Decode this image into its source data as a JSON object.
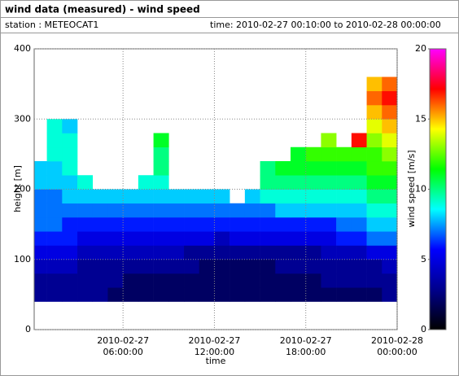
{
  "header": {
    "title": "wind data (measured) - wind speed",
    "station": "station : METEOCAT1",
    "time": "time: 2010-02-27 00:10:00 to 2010-02-28 00:00:00"
  },
  "chart_data": {
    "type": "heatmap",
    "xlabel": "time",
    "ylabel": "height [m]",
    "zlabel": "wind speed [m/s]",
    "x": [
      "2010-02-27 00:10:00",
      "2010-02-27 01:00:00",
      "2010-02-27 02:00:00",
      "2010-02-27 03:00:00",
      "2010-02-27 04:00:00",
      "2010-02-27 05:00:00",
      "2010-02-27 06:00:00",
      "2010-02-27 07:00:00",
      "2010-02-27 08:00:00",
      "2010-02-27 09:00:00",
      "2010-02-27 10:00:00",
      "2010-02-27 11:00:00",
      "2010-02-27 12:00:00",
      "2010-02-27 13:00:00",
      "2010-02-27 14:00:00",
      "2010-02-27 15:00:00",
      "2010-02-27 16:00:00",
      "2010-02-27 17:00:00",
      "2010-02-27 18:00:00",
      "2010-02-27 19:00:00",
      "2010-02-27 20:00:00",
      "2010-02-27 21:00:00",
      "2010-02-27 22:00:00",
      "2010-02-27 23:00:00"
    ],
    "xlim": [
      "2010-02-27 00:10:00",
      "2010-02-28 00:00:00"
    ],
    "xticks": [
      {
        "value": "2010-02-27 06:00:00",
        "label": [
          "2010-02-27",
          "06:00:00"
        ]
      },
      {
        "value": "2010-02-27 12:00:00",
        "label": [
          "2010-02-27",
          "12:00:00"
        ]
      },
      {
        "value": "2010-02-27 18:00:00",
        "label": [
          "2010-02-27",
          "18:00:00"
        ]
      },
      {
        "value": "2010-02-28 00:00:00",
        "label": [
          "2010-02-28",
          "00:00:00"
        ]
      }
    ],
    "ybins": [
      40,
      60,
      80,
      100,
      120,
      140,
      160,
      180,
      200,
      220,
      240,
      260,
      280,
      300,
      320,
      340,
      360
    ],
    "ylim": [
      0,
      400
    ],
    "yticks": [
      0,
      100,
      200,
      300,
      400
    ],
    "zlim": [
      0,
      20
    ],
    "zticks": [
      0,
      5,
      10,
      15,
      20
    ],
    "colormap": [
      "#000000",
      "#00008c",
      "#0000ff",
      "#00ffff",
      "#00ff00",
      "#ffff00",
      "#ff0000",
      "#ff00ff"
    ],
    "grid": true,
    "values": [
      [
        3,
        3,
        3,
        3,
        3,
        2,
        2,
        2,
        2,
        2,
        2,
        2,
        2,
        2,
        2,
        2,
        2,
        2,
        2,
        2,
        2,
        2,
        2,
        3
      ],
      [
        3,
        3,
        3,
        3,
        3,
        3,
        2,
        2,
        2,
        2,
        2,
        2,
        2,
        2,
        2,
        2,
        2,
        2,
        2,
        3,
        3,
        3,
        3,
        3
      ],
      [
        4,
        4,
        4,
        3,
        3,
        3,
        3,
        3,
        3,
        3,
        3,
        2,
        2,
        2,
        2,
        2,
        3,
        3,
        3,
        3,
        3,
        3,
        3,
        4
      ],
      [
        5,
        5,
        5,
        4,
        4,
        4,
        4,
        4,
        4,
        4,
        3,
        3,
        3,
        3,
        3,
        3,
        3,
        3,
        3,
        4,
        4,
        4,
        5,
        5
      ],
      [
        6,
        6,
        6,
        5,
        5,
        5,
        5,
        5,
        5,
        5,
        5,
        5,
        4,
        5,
        5,
        5,
        5,
        5,
        5,
        5,
        6,
        6,
        7,
        7
      ],
      [
        7,
        7,
        6,
        6,
        6,
        6,
        6,
        6,
        6,
        6,
        6,
        6,
        6,
        6,
        6,
        6,
        6,
        6,
        6,
        6,
        7,
        7,
        8,
        8
      ],
      [
        7,
        7,
        7,
        7,
        7,
        7,
        7,
        7,
        7,
        7,
        7,
        7,
        7,
        7,
        7,
        7,
        8,
        8,
        8,
        8,
        8,
        8,
        9,
        9
      ],
      [
        7,
        7,
        8,
        8,
        8,
        8,
        8,
        8,
        8,
        8,
        8,
        8,
        8,
        null,
        8,
        9,
        9,
        9,
        9,
        9,
        9,
        9,
        10,
        10
      ],
      [
        8,
        8,
        8,
        9,
        null,
        null,
        null,
        9,
        9,
        null,
        null,
        null,
        null,
        null,
        null,
        10,
        10,
        10,
        10,
        10,
        10,
        10,
        11,
        11
      ],
      [
        8,
        8,
        9,
        null,
        null,
        null,
        null,
        null,
        10,
        null,
        null,
        null,
        null,
        null,
        null,
        10,
        11,
        11,
        11,
        11,
        11,
        11,
        12,
        12
      ],
      [
        null,
        9,
        9,
        null,
        null,
        null,
        null,
        null,
        10,
        null,
        null,
        null,
        null,
        null,
        null,
        null,
        null,
        11,
        12,
        12,
        12,
        12,
        12,
        13
      ],
      [
        null,
        9,
        9,
        null,
        null,
        null,
        null,
        null,
        11,
        null,
        null,
        null,
        null,
        null,
        null,
        null,
        null,
        null,
        null,
        13,
        null,
        17,
        13,
        14
      ],
      [
        null,
        9,
        8,
        null,
        null,
        null,
        null,
        null,
        null,
        null,
        null,
        null,
        null,
        null,
        null,
        null,
        null,
        null,
        null,
        null,
        null,
        null,
        14,
        15
      ],
      [
        null,
        null,
        null,
        null,
        null,
        null,
        null,
        null,
        null,
        null,
        null,
        null,
        null,
        null,
        null,
        null,
        null,
        null,
        null,
        null,
        null,
        null,
        15,
        16
      ],
      [
        null,
        null,
        null,
        null,
        null,
        null,
        null,
        null,
        null,
        null,
        null,
        null,
        null,
        null,
        null,
        null,
        null,
        null,
        null,
        null,
        null,
        null,
        16,
        17
      ],
      [
        null,
        null,
        null,
        null,
        null,
        null,
        null,
        null,
        null,
        null,
        null,
        null,
        null,
        null,
        null,
        null,
        null,
        null,
        null,
        null,
        null,
        null,
        15,
        16
      ]
    ]
  }
}
